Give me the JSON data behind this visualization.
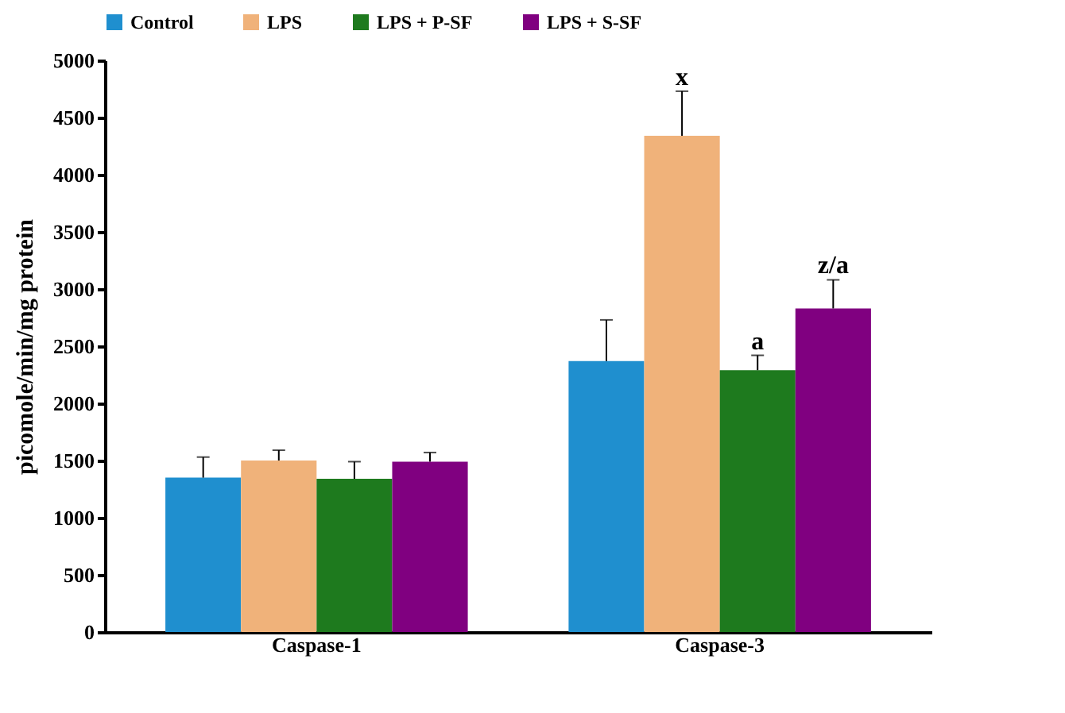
{
  "chart_data": {
    "type": "bar",
    "ylabel": "picomole/min/mg protein",
    "categories": [
      "Caspase-1",
      "Caspase-3"
    ],
    "series": [
      {
        "name": "Control",
        "color": "#1f8fcf",
        "values": [
          1350,
          2370
        ],
        "errors": [
          [
            1350,
            1530
          ],
          [
            2370,
            2730
          ]
        ]
      },
      {
        "name": "LPS",
        "color": "#f0b27a",
        "values": [
          1500,
          4340
        ],
        "errors": [
          [
            1500,
            1590
          ],
          [
            4340,
            4730
          ]
        ]
      },
      {
        "name": "LPS + P-SF",
        "color": "#1e7a1e",
        "values": [
          1340,
          2290
        ],
        "errors": [
          [
            1340,
            1490
          ],
          [
            2290,
            2420
          ]
        ]
      },
      {
        "name": "LPS + S-SF",
        "color": "#800080",
        "values": [
          1490,
          2830
        ],
        "errors": [
          [
            1490,
            1570
          ],
          [
            2830,
            3080
          ]
        ]
      }
    ],
    "annotations": [
      {
        "text": "x",
        "x": "Caspase-3",
        "y": 4340
      },
      {
        "text": "a",
        "x": "Caspase-3",
        "y": 2290
      },
      "z/a"
    ],
    "ylim": [
      0,
      5000
    ],
    "yticks": [
      0,
      500,
      1000,
      1500,
      2000,
      2500,
      3000,
      3500,
      4000,
      4500,
      5000
    ],
    "legend": "top"
  }
}
